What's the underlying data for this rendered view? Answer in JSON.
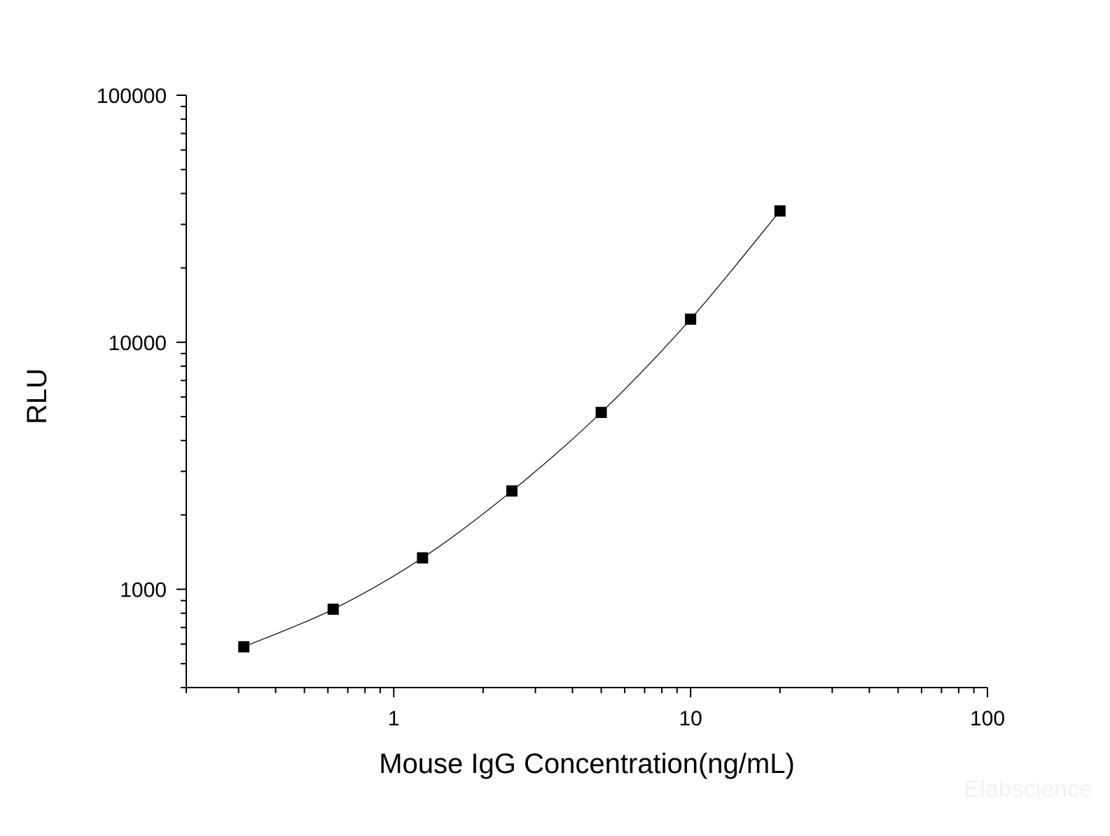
{
  "chart_data": {
    "type": "scatter",
    "title": "",
    "xlabel": "Mouse IgG Concentration(ng/mL)",
    "ylabel": "RLU",
    "x_scale": "log",
    "y_scale": "log",
    "xlim": [
      0.2,
      100
    ],
    "ylim": [
      400,
      100000
    ],
    "x_ticks": [
      1,
      10,
      100
    ],
    "x_tick_labels": [
      "1",
      "10",
      "100"
    ],
    "y_ticks": [
      1000,
      10000,
      100000
    ],
    "y_tick_labels": [
      "1000",
      "10000",
      "100000"
    ],
    "grid": false,
    "legend": "none",
    "series": [
      {
        "marker": "square",
        "line": "smooth",
        "x": [
          0.3125,
          0.625,
          1.25,
          2.5,
          5,
          10,
          20
        ],
        "y": [
          585,
          830,
          1340,
          2500,
          5200,
          12400,
          34000
        ]
      }
    ]
  },
  "watermark": "Elabscience",
  "colors": {
    "axis": "#000000",
    "marker": "#000000",
    "line": "#000000",
    "background": "#ffffff"
  }
}
